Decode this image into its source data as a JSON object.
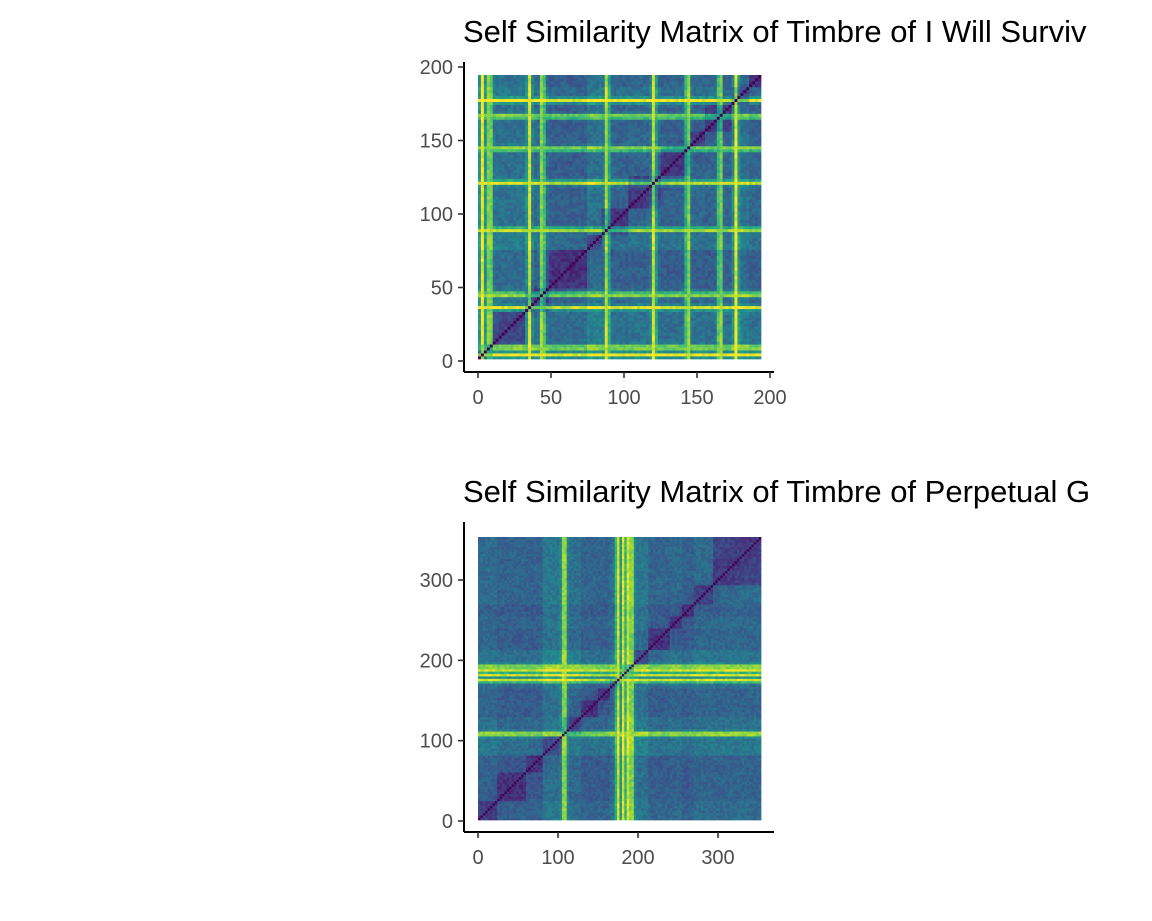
{
  "chart_data": [
    {
      "type": "heatmap",
      "title": "Self Similarity Matrix of Timbre of I Will Surviv",
      "xlabel": "",
      "ylabel": "",
      "xlim": [
        0,
        200
      ],
      "ylim": [
        0,
        200
      ],
      "x_ticks": [
        0,
        50,
        100,
        150,
        200
      ],
      "y_ticks": [
        0,
        50,
        100,
        150,
        200
      ],
      "x_tick_labels": [
        "0",
        "50",
        "100",
        "150",
        "200"
      ],
      "y_tick_labels": [
        "0",
        "50",
        "100",
        "150",
        "200"
      ],
      "matrix_size": 193,
      "diagonal": "zero distance (dark) along x = y",
      "colorscale": "viridis",
      "block_boundaries": [
        10,
        32,
        48,
        75,
        85,
        102,
        125,
        145,
        155,
        172,
        185
      ],
      "bright_bands": [
        3,
        8,
        35,
        44,
        88,
        120,
        143,
        165,
        176
      ],
      "grid": false,
      "legend": "none"
    },
    {
      "type": "heatmap",
      "title": "Self Similarity Matrix of Timbre of Perpetual G",
      "xlabel": "",
      "ylabel": "",
      "xlim": [
        0,
        354
      ],
      "ylim": [
        0,
        354
      ],
      "x_ticks": [
        0,
        100,
        200,
        300
      ],
      "y_ticks": [
        0,
        100,
        200,
        300
      ],
      "x_tick_labels": [
        "0",
        "100",
        "200",
        "300"
      ],
      "y_tick_labels": [
        "0",
        "100",
        "200",
        "300"
      ],
      "matrix_size": 354,
      "diagonal": "zero distance (dark) along x = y",
      "colorscale": "viridis",
      "block_boundaries": [
        25,
        60,
        80,
        105,
        130,
        150,
        165,
        178,
        195,
        212,
        240,
        255,
        270,
        295
      ],
      "bright_bands": [
        108,
        175,
        182,
        188,
        192
      ],
      "grid": false,
      "legend": "none"
    }
  ]
}
